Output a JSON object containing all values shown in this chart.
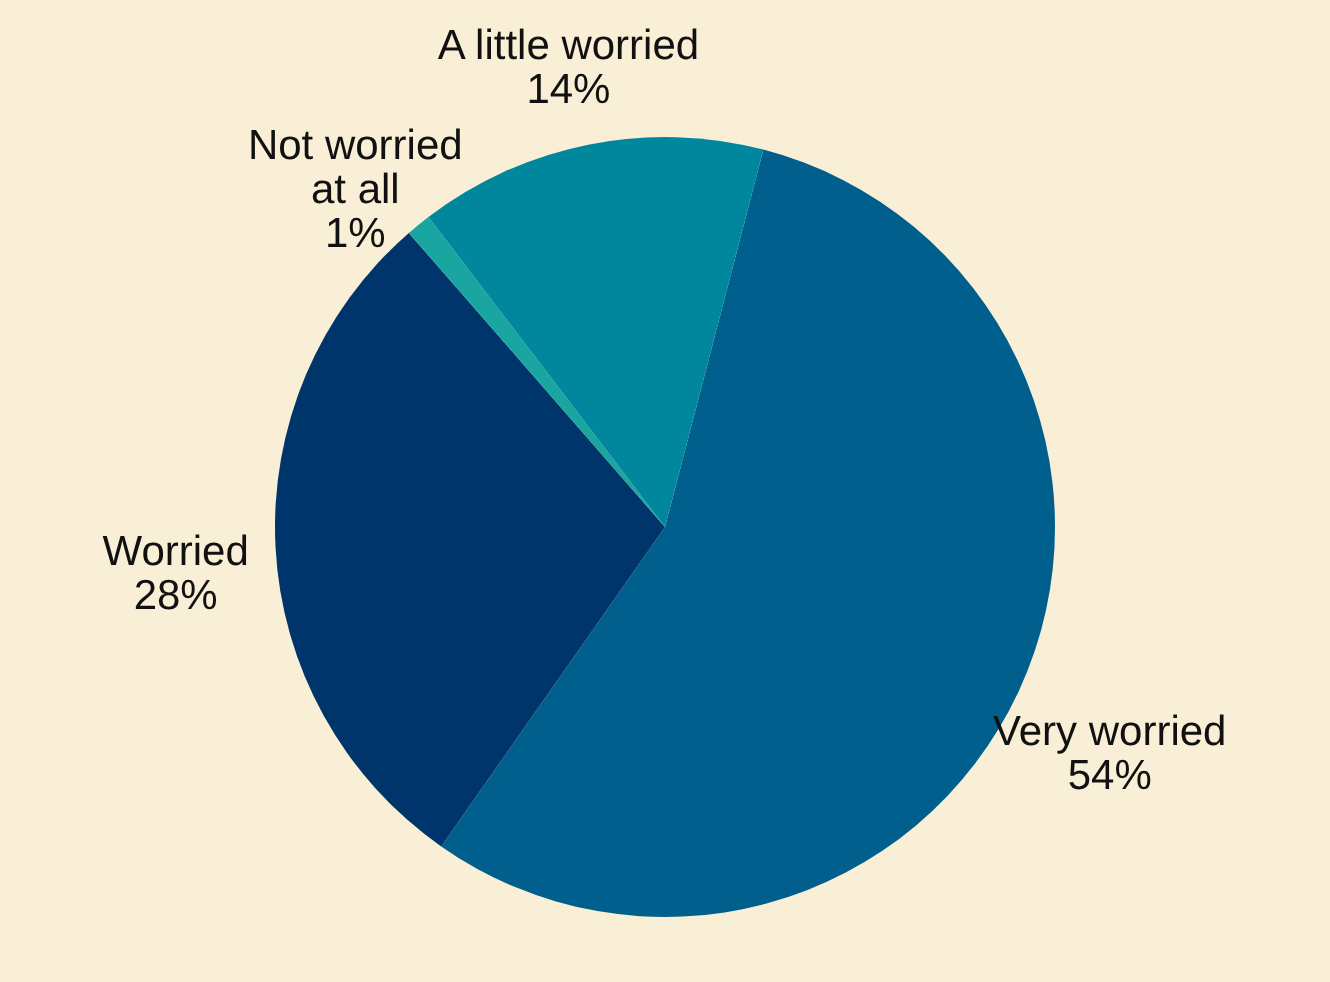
{
  "chart_data": {
    "type": "pie",
    "categories": [
      "Very worried",
      "Worried",
      "Not worried at all",
      "A little worried"
    ],
    "values": [
      54,
      28,
      1,
      14
    ],
    "value_labels": [
      "54%",
      "28%",
      "1%",
      "14%"
    ],
    "colors": [
      "#005f8c",
      "#00356b",
      "#1aa6a0",
      "#00879e"
    ],
    "legend": false
  }
}
